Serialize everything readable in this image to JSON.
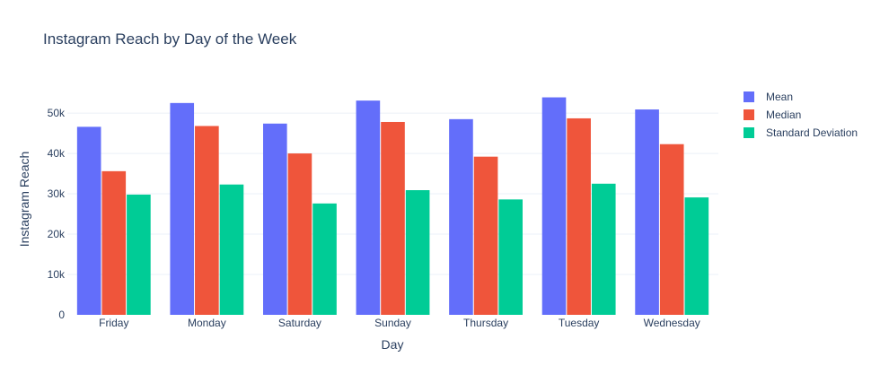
{
  "chart_data": {
    "type": "bar",
    "title": "Instagram Reach by Day of the Week",
    "xlabel": "Day",
    "ylabel": "Instagram Reach",
    "categories": [
      "Friday",
      "Monday",
      "Saturday",
      "Sunday",
      "Thursday",
      "Tuesday",
      "Wednesday"
    ],
    "series": [
      {
        "name": "Mean",
        "color": "#636efa",
        "values": [
          46600,
          52500,
          47400,
          53100,
          48500,
          53900,
          50900
        ]
      },
      {
        "name": "Median",
        "color": "#ef553b",
        "values": [
          35600,
          46800,
          40000,
          47800,
          39200,
          48700,
          42300
        ]
      },
      {
        "name": "Standard Deviation",
        "color": "#00cc96",
        "values": [
          29800,
          32300,
          27600,
          30900,
          28600,
          32500,
          29100
        ]
      }
    ],
    "ylim": [
      0,
      55800
    ],
    "yticks": [
      0,
      10000,
      20000,
      30000,
      40000,
      50000
    ],
    "ytick_labels": [
      "0",
      "10k",
      "20k",
      "30k",
      "40k",
      "50k"
    ],
    "grid": true,
    "legend_position": "top-right"
  }
}
